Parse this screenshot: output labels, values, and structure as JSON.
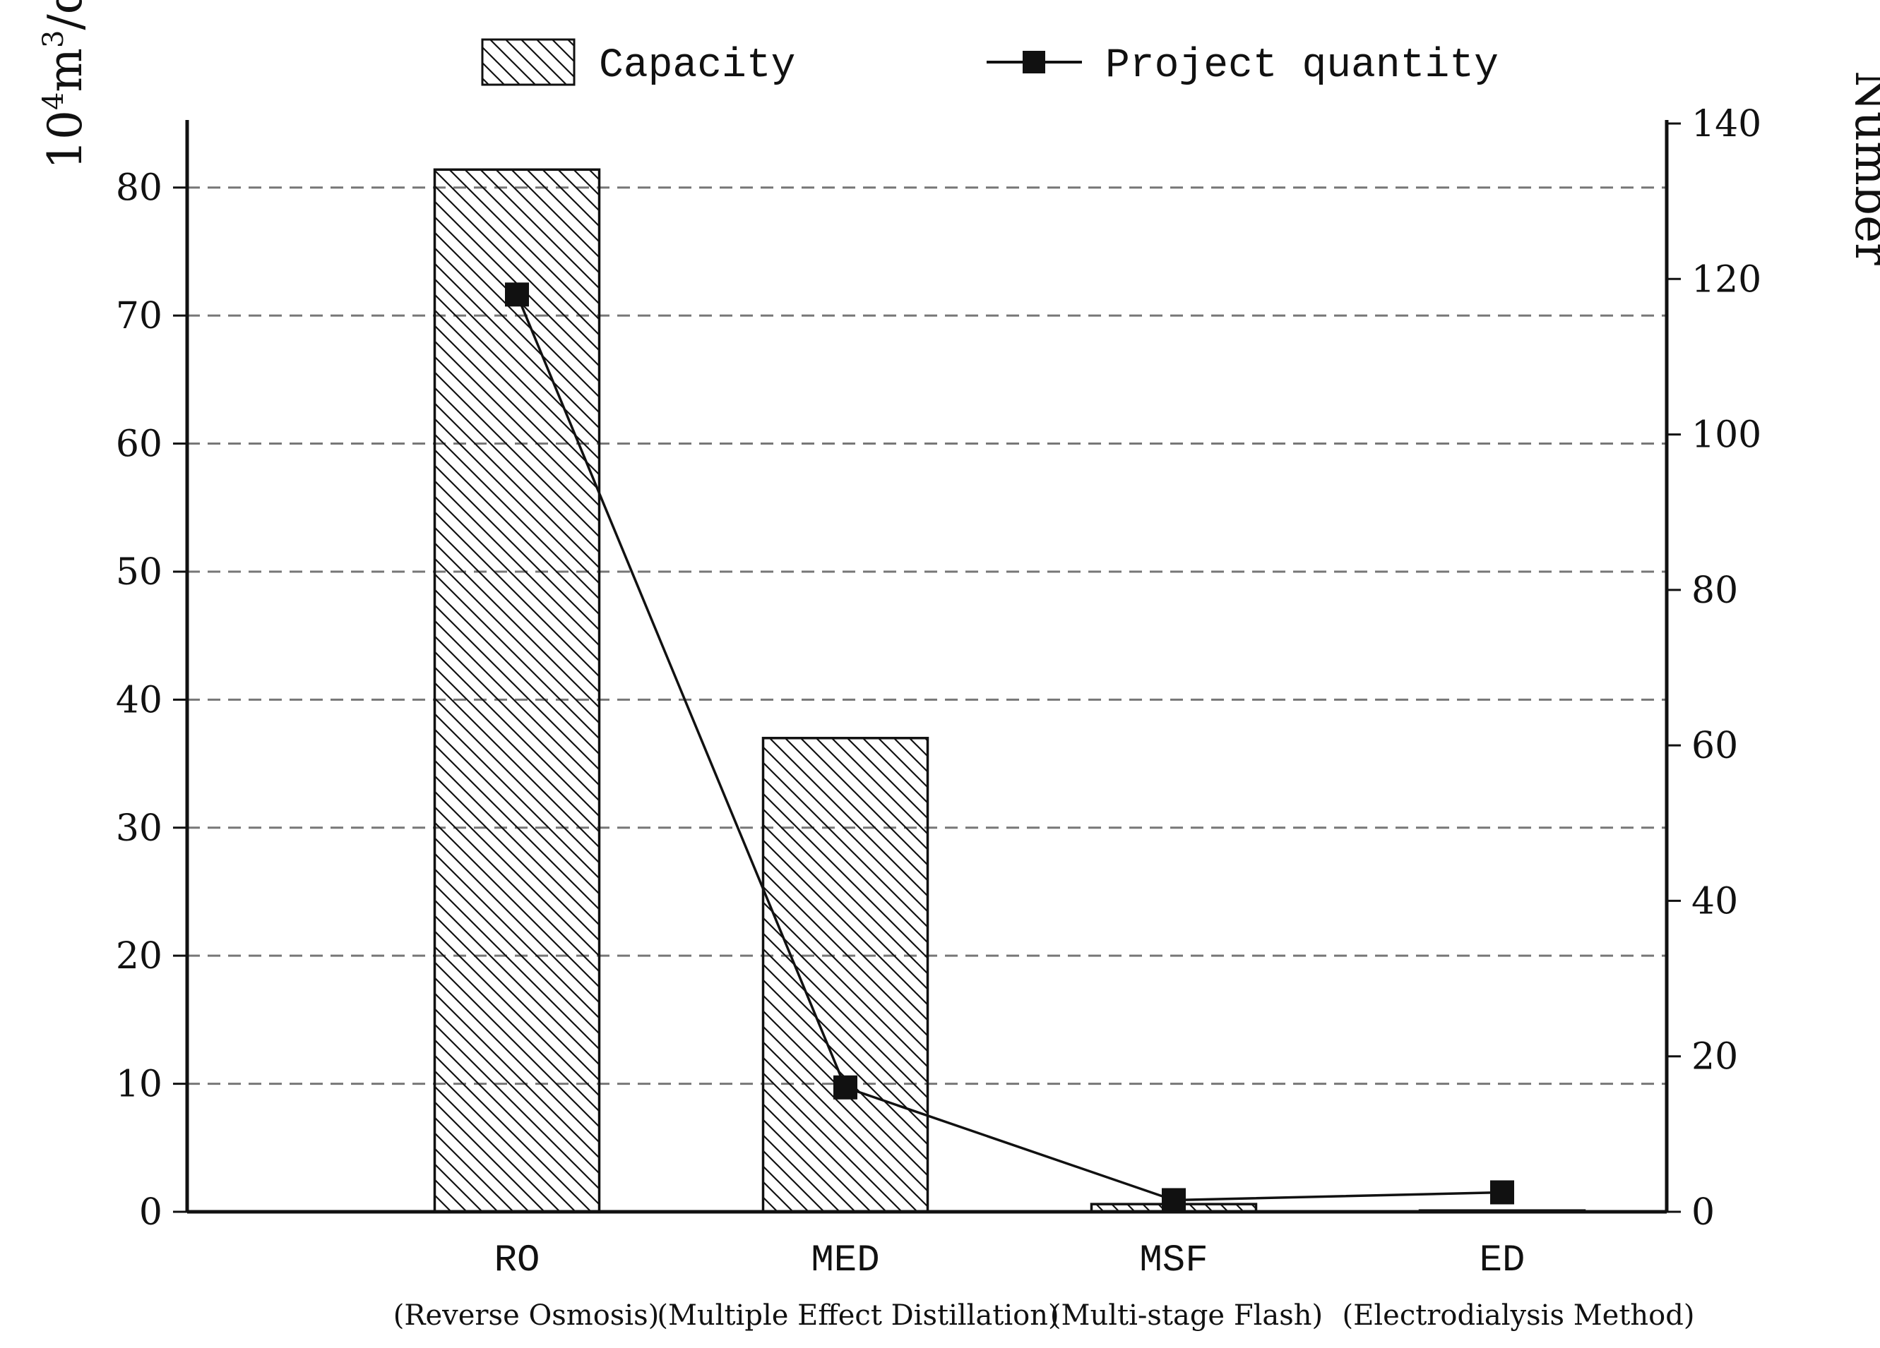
{
  "chart_data": {
    "type": "bar",
    "categories": [
      "RO",
      "MED",
      "MSF",
      "ED"
    ],
    "category_descriptions": [
      "(Reverse Osmosis)",
      "(Multiple Effect Distillation)",
      "(Multi-stage Flash)",
      "(Electrodialysis Method)"
    ],
    "series": [
      {
        "name": "Capacity",
        "kind": "bar",
        "axis": "left",
        "pattern": "diagonal-hatch",
        "values": [
          81.4,
          37.0,
          0.6,
          0.1
        ]
      },
      {
        "name": "Project quantity",
        "kind": "line",
        "axis": "right",
        "marker": "square",
        "values": [
          118,
          16,
          1.5,
          2.5
        ]
      }
    ],
    "ylabel_left": {
      "base": "10",
      "exp1": "4",
      "mid": "m",
      "exp2": "3",
      "tail": "/day"
    },
    "ylabel_right": "Number",
    "ylim_left": [
      0,
      85
    ],
    "ylim_right": [
      0,
      140
    ],
    "yticks_left": [
      0,
      10,
      20,
      30,
      40,
      50,
      60,
      70,
      80
    ],
    "yticks_right": [
      0,
      20,
      40,
      60,
      80,
      100,
      120,
      140
    ],
    "grid": "horizontal-dashed",
    "legend_position": "top"
  }
}
